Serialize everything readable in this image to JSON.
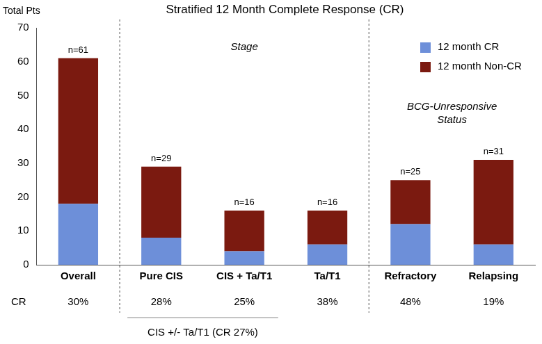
{
  "chart_data": {
    "type": "bar",
    "title": "Stratified 12 Month Complete Response (CR)",
    "y_label": "Total Pts",
    "categories": [
      "Overall",
      "Pure CIS",
      "CIS + Ta/T1",
      "Ta/T1",
      "Refractory",
      "Relapsing"
    ],
    "series": [
      {
        "name": "12 month CR",
        "color": "#6d8fd9",
        "values": [
          18,
          8,
          4,
          6,
          12,
          6
        ]
      },
      {
        "name": "12 month Non-CR",
        "color": "#7b1a10",
        "values": [
          43,
          21,
          12,
          10,
          13,
          25
        ]
      }
    ],
    "ylim": [
      0,
      70
    ],
    "yticks": [
      0,
      10,
      20,
      30,
      40,
      50,
      60,
      70
    ],
    "stacked": true,
    "grid": false,
    "legend": "upper right",
    "annotations": {
      "totals": [
        "n=61",
        "n=29",
        "n=16",
        "n=16",
        "n=25",
        "n=31"
      ],
      "cr_row_label": "CR",
      "cr_rates": [
        "30%",
        "28%",
        "25%",
        "38%",
        "48%",
        "19%"
      ],
      "groups": [
        {
          "label": [
            "Stage"
          ],
          "categories": [
            "Pure CIS",
            "CIS + Ta/T1",
            "Ta/T1"
          ]
        },
        {
          "label": [
            "BCG-Unresponsive",
            "Status"
          ],
          "categories": [
            "Refractory",
            "Relapsing"
          ]
        }
      ],
      "bracket": {
        "label": "CIS +/- Ta/T1 (CR 27%)",
        "categories": [
          "Pure CIS",
          "CIS + Ta/T1"
        ]
      }
    }
  }
}
